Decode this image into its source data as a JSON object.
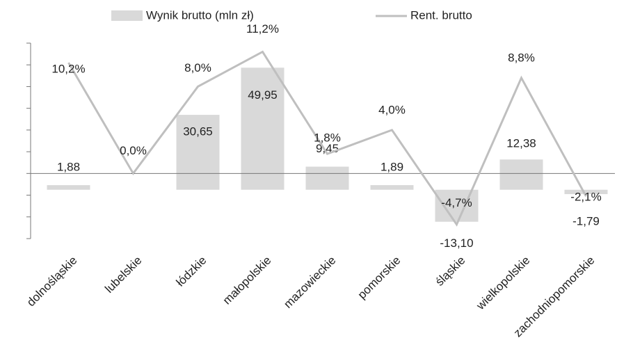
{
  "chart_data": {
    "type": "bar+line",
    "categories": [
      "dolnośląskie",
      "lubelskie",
      "łódzkie",
      "małopolskie",
      "mazowieckie",
      "pomorskie",
      "śląskie",
      "wielkopolskie",
      "zachodniopomorskie"
    ],
    "series": [
      {
        "name": "Wynik brutto (mln zł)",
        "type": "bar",
        "axis": "y2",
        "color": "#d9d9d9",
        "values": [
          1.88,
          0,
          30.65,
          49.95,
          9.45,
          1.89,
          -13.1,
          12.38,
          -1.79
        ],
        "value_labels": [
          "1,88",
          "-",
          "30,65",
          "49,95",
          "9,45",
          "1,89",
          "-13,10",
          "12,38",
          "-1,79"
        ]
      },
      {
        "name": "Rent. brutto",
        "type": "line",
        "color": "#bfbfbf",
        "values": [
          10.2,
          0.0,
          8.0,
          11.2,
          1.8,
          4.0,
          -4.7,
          8.8,
          -2.1
        ],
        "value_labels": [
          "10,2%",
          "0,0%",
          "8,0%",
          "11,2%",
          "1,8%",
          "4,0%",
          "-4,7%",
          "8,8%",
          "-2,1%"
        ]
      }
    ],
    "ylim": [
      -6,
      12
    ],
    "yticks": [
      -6,
      -4,
      -2,
      0,
      2,
      4,
      6,
      8,
      10,
      12
    ],
    "y2lim": [
      -20,
      60
    ],
    "legend": "top"
  }
}
